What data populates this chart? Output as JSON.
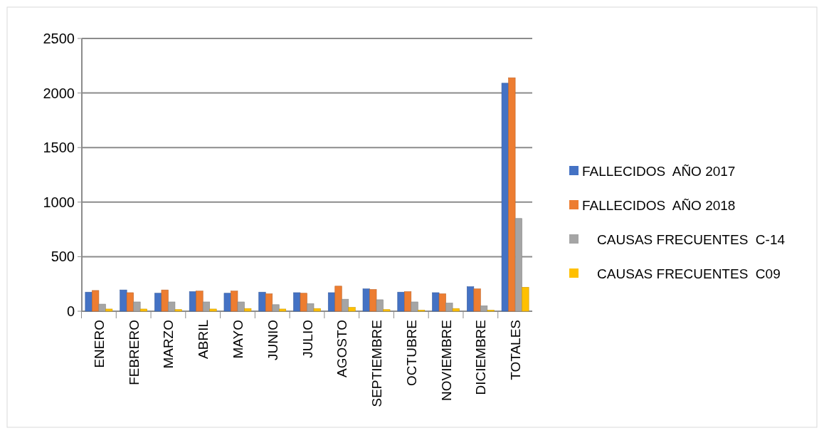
{
  "chart_data": {
    "type": "bar",
    "categories": [
      "ENERO",
      "FEBRERO",
      "MARZO",
      "ABRIL",
      "MAYO",
      "JUNIO",
      "JULIO",
      "AGOSTO",
      "SEPTIEMBRE",
      "OCTUBRE",
      "NOVIEMBRE",
      "DICIEMBRE",
      "TOTALES"
    ],
    "series": [
      {
        "name": "FALLECIDOS  AÑO 2017",
        "color": "#4472c4",
        "values": [
          175,
          195,
          165,
          180,
          165,
          175,
          170,
          170,
          205,
          175,
          170,
          225,
          2090
        ]
      },
      {
        "name": "FALLECIDOS  AÑO 2018",
        "color": "#ed7d31",
        "values": [
          190,
          170,
          195,
          185,
          185,
          160,
          165,
          230,
          200,
          180,
          160,
          205,
          2140
        ]
      },
      {
        "name": "    CAUSAS FRECUENTES  C-14",
        "color": "#a5a5a5",
        "values": [
          65,
          85,
          85,
          85,
          85,
          60,
          70,
          110,
          105,
          85,
          75,
          50,
          850
        ]
      },
      {
        "name": "    CAUSAS FRECUENTES  C09",
        "color": "#ffc000",
        "values": [
          20,
          20,
          15,
          20,
          25,
          20,
          25,
          35,
          15,
          10,
          25,
          10,
          220
        ]
      }
    ],
    "ylim": [
      0,
      2500
    ],
    "yticks": [
      0,
      500,
      1000,
      1500,
      2000,
      2500
    ],
    "grid": "y",
    "legend": "right"
  }
}
